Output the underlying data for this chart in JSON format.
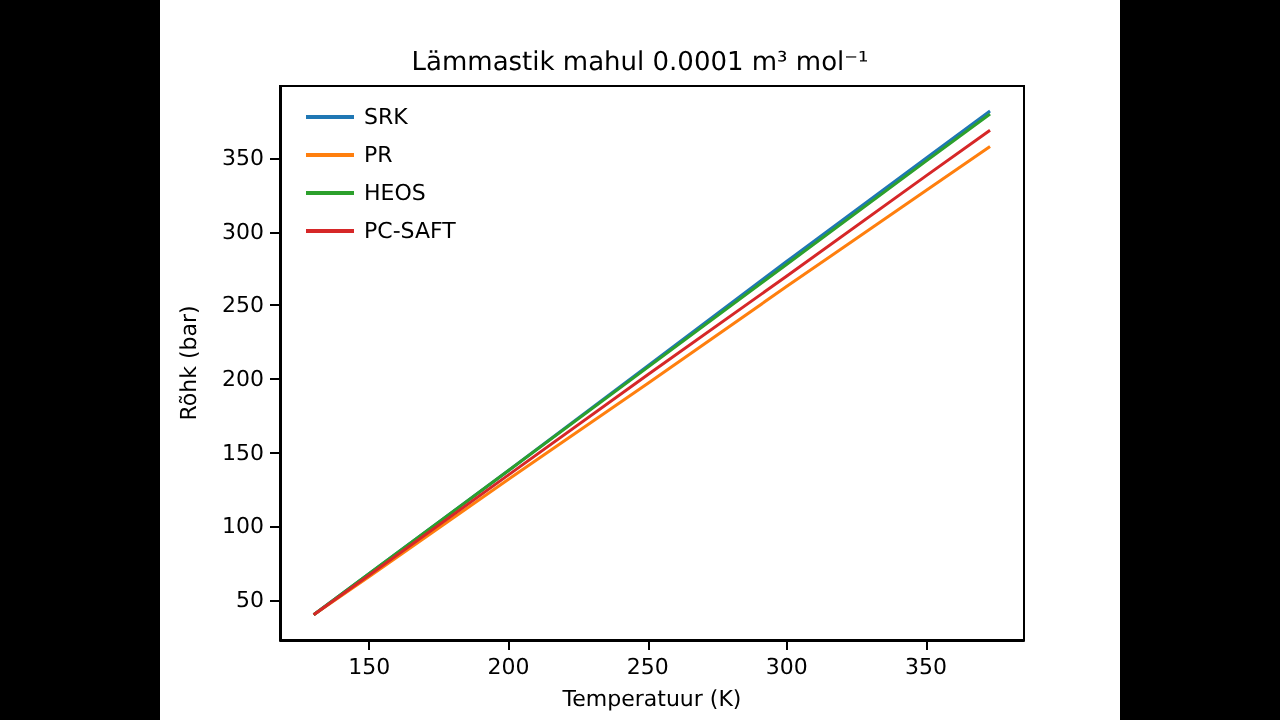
{
  "chart_data": {
    "type": "line",
    "title": "Lämmastik mahul 0.0001 m³ mol⁻¹",
    "xlabel": "Temperatuur (K)",
    "ylabel": "Rõhk (bar)",
    "x": [
      130,
      150,
      200,
      250,
      300,
      350,
      373
    ],
    "series": [
      {
        "name": "SRK",
        "color": "#1f77b4",
        "values": [
          40,
          68,
          138,
          209,
          280,
          350,
          382
        ]
      },
      {
        "name": "PR",
        "color": "#ff7f0e",
        "values": [
          40,
          66,
          132,
          197,
          263,
          328,
          358
        ]
      },
      {
        "name": "HEOS",
        "color": "#2ca02c",
        "values": [
          40,
          68,
          138,
          208,
          278,
          348,
          380
        ]
      },
      {
        "name": "PC-SAFT",
        "color": "#d62728",
        "values": [
          40,
          67,
          135,
          203,
          270,
          338,
          369
        ]
      }
    ],
    "xlim": [
      117.9,
      385.2
    ],
    "xticks": [
      150,
      200,
      250,
      300,
      350
    ],
    "ylim": [
      22.9,
      399
    ],
    "yticks": [
      50,
      100,
      150,
      200,
      250,
      300,
      350
    ],
    "grid": false,
    "legend": "top left",
    "marker": "none",
    "line_style": "solid"
  }
}
